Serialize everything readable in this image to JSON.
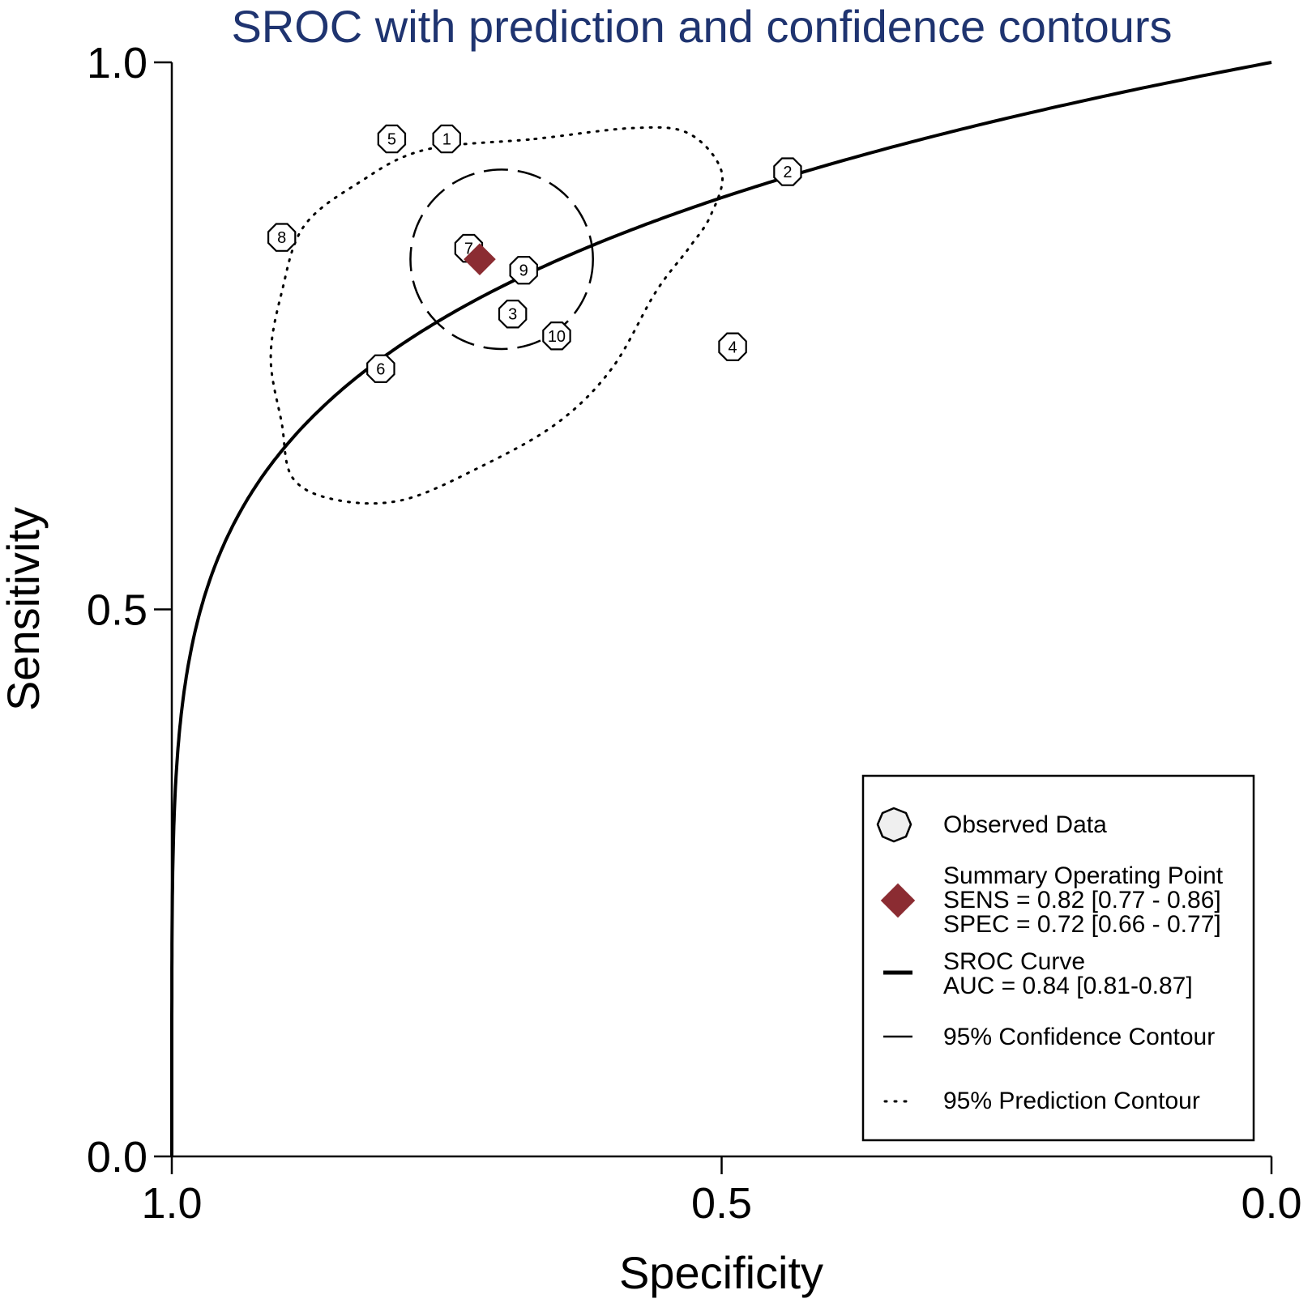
{
  "chart_data": {
    "type": "scatter",
    "title": "SROC with prediction and confidence contours",
    "xlabel": "Specificity",
    "ylabel": "Sensitivity",
    "x_reversed": true,
    "xlim": [
      1.0,
      0.0
    ],
    "ylim": [
      0.0,
      1.0
    ],
    "x_ticks": [
      "1.0",
      "0.5",
      "0.0"
    ],
    "y_ticks": [
      "0.0",
      "0.5",
      "1.0"
    ],
    "grid": false,
    "legend_position": "bottom-right",
    "colors": {
      "title": "#1f3470",
      "summary": "#8b2c32",
      "line": "#000000"
    },
    "observed_data": [
      {
        "label": "1",
        "spec": 0.75,
        "sens": 0.93
      },
      {
        "label": "2",
        "spec": 0.44,
        "sens": 0.9
      },
      {
        "label": "3",
        "spec": 0.69,
        "sens": 0.77
      },
      {
        "label": "4",
        "spec": 0.49,
        "sens": 0.74
      },
      {
        "label": "5",
        "spec": 0.8,
        "sens": 0.93
      },
      {
        "label": "6",
        "spec": 0.81,
        "sens": 0.72
      },
      {
        "label": "7",
        "spec": 0.73,
        "sens": 0.83
      },
      {
        "label": "8",
        "spec": 0.9,
        "sens": 0.84
      },
      {
        "label": "9",
        "spec": 0.68,
        "sens": 0.81
      },
      {
        "label": "10",
        "spec": 0.65,
        "sens": 0.75
      }
    ],
    "summary_point": {
      "spec": 0.72,
      "sens": 0.82
    },
    "sroc_curve": {
      "auc": 0.84
    },
    "confidence_contour": {
      "center_spec": 0.7,
      "center_sens": 0.82,
      "half_width_spec": 0.083,
      "half_height_sens": 0.082
    },
    "prediction_contour": [
      [
        0.67,
        0.93
      ],
      [
        0.58,
        0.94
      ],
      [
        0.53,
        0.935
      ],
      [
        0.5,
        0.9
      ],
      [
        0.51,
        0.86
      ],
      [
        0.53,
        0.83
      ],
      [
        0.56,
        0.79
      ],
      [
        0.6,
        0.72
      ],
      [
        0.65,
        0.67
      ],
      [
        0.72,
        0.63
      ],
      [
        0.79,
        0.6
      ],
      [
        0.85,
        0.6
      ],
      [
        0.89,
        0.62
      ],
      [
        0.9,
        0.67
      ],
      [
        0.91,
        0.73
      ],
      [
        0.9,
        0.79
      ],
      [
        0.88,
        0.85
      ],
      [
        0.83,
        0.89
      ],
      [
        0.77,
        0.92
      ],
      [
        0.67,
        0.93
      ]
    ],
    "legend": {
      "observed": "Observed Data",
      "summary_title": "Summary Operating Point",
      "summary_sens": "SENS = 0.82 [0.77 - 0.86]",
      "summary_spec": "SPEC = 0.72 [0.66 - 0.77]",
      "sroc_title": "SROC Curve",
      "sroc_auc": "AUC = 0.84 [0.81-0.87]",
      "confidence": "95% Confidence Contour",
      "prediction": "95% Prediction Contour"
    }
  }
}
